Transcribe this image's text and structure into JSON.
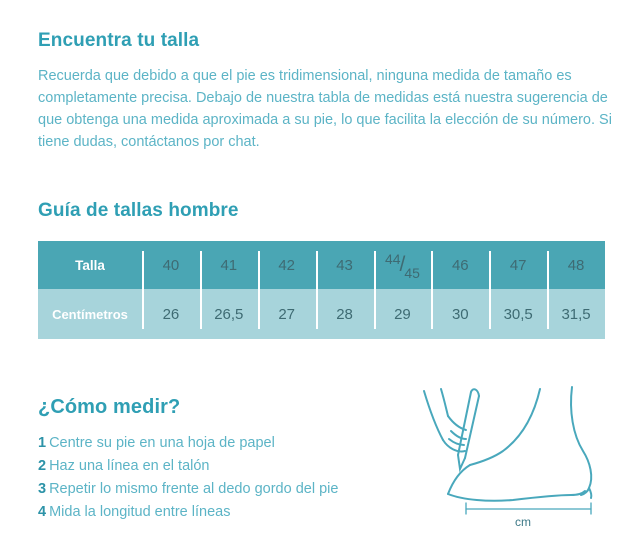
{
  "find_size": {
    "title": "Encuentra tu talla",
    "paragraph": "Recuerda que debido a que el pie es tridimensional, ninguna medida de tamaño es completamente precisa. Debajo de nuestra tabla de medidas está nuestra sugerencia de que obtenga una medida aproximada a su pie, lo que facilita la elección de su número. Si tiene dudas, contáctanos por chat."
  },
  "size_guide": {
    "title": "Guía de tallas hombre",
    "table": {
      "rows": [
        {
          "label": "Talla",
          "values": [
            "40",
            "41",
            "42",
            "43",
            "44/45",
            "46",
            "47",
            "48"
          ]
        },
        {
          "label": "Centímetros",
          "values": [
            "26",
            "26,5",
            "27",
            "28",
            "29",
            "30",
            "30,5",
            "31,5"
          ]
        }
      ]
    }
  },
  "how_to_measure": {
    "title": "¿Cómo medir?",
    "steps": [
      {
        "number": "1",
        "text": "Centre su pie en una hoja de papel"
      },
      {
        "number": "2",
        "text": "Haz una línea en el talón"
      },
      {
        "number": "3",
        "text": "Repetir lo mismo frente al dedo gordo del pie"
      },
      {
        "number": "4",
        "text": "Mida la longitud entre líneas"
      }
    ],
    "illustration_caption": "cm"
  },
  "colors": {
    "heading": "#2f9fb4",
    "body_text": "#5cb4c6",
    "table_header_bg": "#4aa6b4",
    "table_row_bg": "#a7d4db",
    "table_number_text": "#3e6b73",
    "step_number": "#2d93a8",
    "illustration_stroke": "#49a8bc"
  }
}
